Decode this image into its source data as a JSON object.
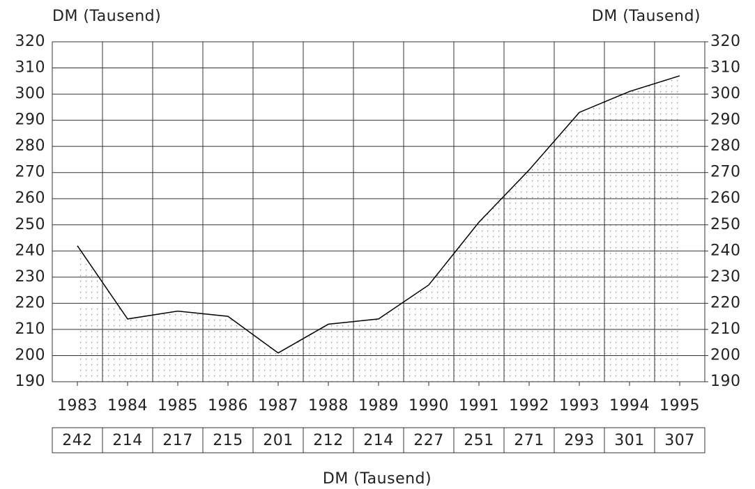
{
  "chart_data": {
    "type": "area",
    "ylabel": "DM (Tausend)",
    "y2label": "DM (Tausend)",
    "table_label": "DM (Tausend)",
    "categories": [
      "1983",
      "1984",
      "1985",
      "1986",
      "1987",
      "1988",
      "1989",
      "1990",
      "1991",
      "1992",
      "1993",
      "1994",
      "1995"
    ],
    "values": [
      242,
      214,
      217,
      215,
      201,
      212,
      214,
      227,
      251,
      271,
      293,
      301,
      307
    ],
    "color": "#000000",
    "ylim": [
      190,
      320
    ],
    "yticks": [
      190,
      200,
      210,
      220,
      230,
      240,
      250,
      260,
      270,
      280,
      290,
      300,
      310,
      320
    ],
    "y2lim": [
      190,
      320
    ],
    "y2ticks": [
      190,
      200,
      210,
      220,
      230,
      240,
      250,
      260,
      270,
      280,
      290,
      300,
      310,
      320
    ],
    "grid": true,
    "data_table": true
  }
}
